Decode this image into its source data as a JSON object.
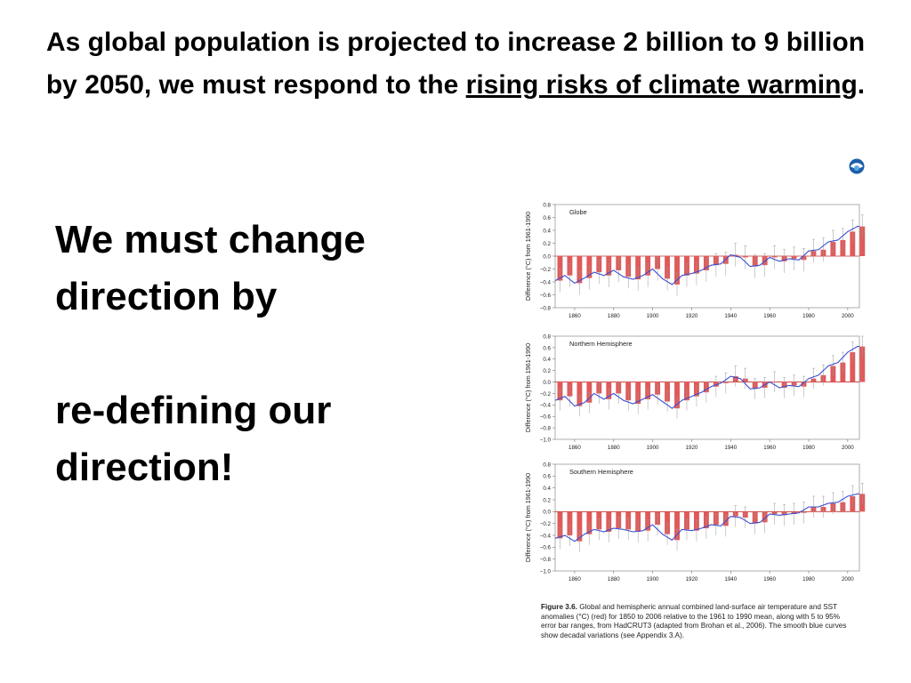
{
  "slide": {
    "headline_part1": "As global population is projected to increase 2 billion to 9 billion by 2050, we must respond to the ",
    "headline_link": "rising risks of climate warming",
    "headline_end": ".",
    "body_line1": "We must change direction by",
    "body_line2": "re-defining our direction!",
    "logo_icon": "noaa-logo-icon"
  },
  "caption": {
    "label": "Figure 3.6.",
    "text": " Global and hemispheric annual combined land-surface air temperature and SST anomalies (°C) (red) for 1850 to 2006 relative to the 1961 to 1990 mean, along with 5 to 95% error bar ranges, from HadCRUT3 (adapted from Brohan et al., 2006). The smooth blue curves show decadal variations (see Appendix 3.A)."
  },
  "colors": {
    "bars": "#e05a5a",
    "curve": "#3a4fd0",
    "errorbars": "#9a9a9a"
  },
  "chart_data": [
    {
      "type": "bar",
      "title": "Globe",
      "ylabel": "Difference (°C) from 1961-1990",
      "xlim": [
        1850,
        2006
      ],
      "ylim": [
        -0.8,
        0.8
      ],
      "yticks": [
        -0.8,
        -0.6,
        -0.4,
        -0.2,
        0.0,
        0.2,
        0.4,
        0.6,
        0.8
      ],
      "xticks": [
        1860,
        1880,
        1900,
        1920,
        1940,
        1960,
        1980,
        2000
      ],
      "years": [
        1850,
        1855,
        1860,
        1865,
        1870,
        1875,
        1880,
        1885,
        1890,
        1895,
        1900,
        1905,
        1910,
        1915,
        1920,
        1925,
        1930,
        1935,
        1940,
        1945,
        1950,
        1955,
        1960,
        1965,
        1970,
        1975,
        1980,
        1985,
        1990,
        1995,
        2000,
        2005
      ],
      "values": [
        -0.38,
        -0.3,
        -0.42,
        -0.34,
        -0.25,
        -0.3,
        -0.22,
        -0.32,
        -0.36,
        -0.3,
        -0.2,
        -0.35,
        -0.44,
        -0.3,
        -0.27,
        -0.22,
        -0.14,
        -0.12,
        0.02,
        -0.02,
        -0.16,
        -0.14,
        -0.02,
        -0.08,
        -0.04,
        -0.06,
        0.08,
        0.1,
        0.22,
        0.25,
        0.38,
        0.46
      ]
    },
    {
      "type": "bar",
      "title": "Northern Hemisphere",
      "ylabel": "Difference (°C) from 1961-1990",
      "xlim": [
        1850,
        2006
      ],
      "ylim": [
        -1.0,
        0.8
      ],
      "yticks": [
        -1.0,
        -0.8,
        -0.6,
        -0.4,
        -0.2,
        0.0,
        0.2,
        0.4,
        0.6,
        0.8
      ],
      "xticks": [
        1860,
        1880,
        1900,
        1920,
        1940,
        1960,
        1980,
        2000
      ],
      "years": [
        1850,
        1855,
        1860,
        1865,
        1870,
        1875,
        1880,
        1885,
        1890,
        1895,
        1900,
        1905,
        1910,
        1915,
        1920,
        1925,
        1930,
        1935,
        1940,
        1945,
        1950,
        1955,
        1960,
        1965,
        1970,
        1975,
        1980,
        1985,
        1990,
        1995,
        2000,
        2005
      ],
      "values": [
        -0.32,
        -0.25,
        -0.42,
        -0.36,
        -0.2,
        -0.3,
        -0.2,
        -0.32,
        -0.38,
        -0.3,
        -0.22,
        -0.34,
        -0.46,
        -0.32,
        -0.25,
        -0.18,
        -0.08,
        -0.02,
        0.1,
        0.06,
        -0.12,
        -0.1,
        0.0,
        -0.1,
        -0.06,
        -0.08,
        0.06,
        0.12,
        0.28,
        0.34,
        0.52,
        0.62
      ]
    },
    {
      "type": "bar",
      "title": "Southern Hemisphere",
      "ylabel": "Difference (°C) from 1961-1990",
      "xlim": [
        1850,
        2006
      ],
      "ylim": [
        -1.0,
        0.8
      ],
      "yticks": [
        -1.0,
        -0.8,
        -0.6,
        -0.4,
        -0.2,
        0.0,
        0.2,
        0.4,
        0.6,
        0.8
      ],
      "xticks": [
        1860,
        1880,
        1900,
        1920,
        1940,
        1960,
        1980,
        2000
      ],
      "years": [
        1850,
        1855,
        1860,
        1865,
        1870,
        1875,
        1880,
        1885,
        1890,
        1895,
        1900,
        1905,
        1910,
        1915,
        1920,
        1925,
        1930,
        1935,
        1940,
        1945,
        1950,
        1955,
        1960,
        1965,
        1970,
        1975,
        1980,
        1985,
        1990,
        1995,
        2000,
        2005
      ],
      "values": [
        -0.45,
        -0.4,
        -0.5,
        -0.38,
        -0.3,
        -0.34,
        -0.28,
        -0.3,
        -0.34,
        -0.32,
        -0.22,
        -0.38,
        -0.48,
        -0.3,
        -0.32,
        -0.28,
        -0.22,
        -0.24,
        -0.08,
        -0.1,
        -0.2,
        -0.18,
        -0.04,
        -0.06,
        -0.04,
        -0.02,
        0.08,
        0.08,
        0.14,
        0.16,
        0.26,
        0.3
      ]
    }
  ]
}
